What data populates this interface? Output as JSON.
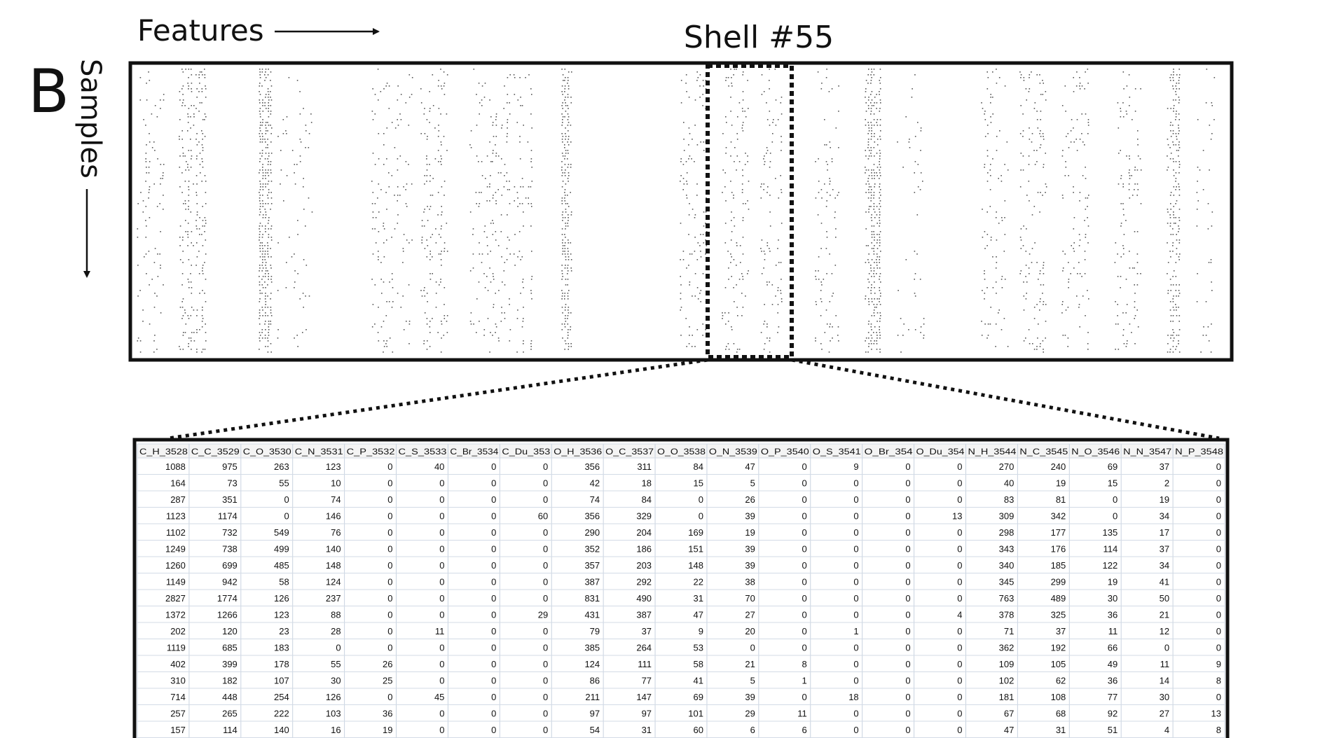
{
  "figure": {
    "panel_letter": "B",
    "features_label": "Features",
    "samples_label": "Samples",
    "shell_label": "Shell #55"
  },
  "table": {
    "headers": [
      "C_H_3528",
      "C_C_3529",
      "C_O_3530",
      "C_N_3531",
      "C_P_3532",
      "C_S_3533",
      "C_Br_3534",
      "C_Du_353",
      "O_H_3536",
      "O_C_3537",
      "O_O_3538",
      "O_N_3539",
      "O_P_3540",
      "O_S_3541",
      "O_Br_354",
      "O_Du_354",
      "N_H_3544",
      "N_C_3545",
      "N_O_3546",
      "N_N_3547",
      "N_P_3548"
    ],
    "rows": [
      [
        1088,
        975,
        263,
        123,
        0,
        40,
        0,
        0,
        356,
        311,
        84,
        47,
        0,
        9,
        0,
        0,
        270,
        240,
        69,
        37,
        0
      ],
      [
        164,
        73,
        55,
        10,
        0,
        0,
        0,
        0,
        42,
        18,
        15,
        5,
        0,
        0,
        0,
        0,
        40,
        19,
        15,
        2,
        0
      ],
      [
        287,
        351,
        0,
        74,
        0,
        0,
        0,
        0,
        74,
        84,
        0,
        26,
        0,
        0,
        0,
        0,
        83,
        81,
        0,
        19,
        0
      ],
      [
        1123,
        1174,
        0,
        146,
        0,
        0,
        0,
        60,
        356,
        329,
        0,
        39,
        0,
        0,
        0,
        13,
        309,
        342,
        0,
        34,
        0
      ],
      [
        1102,
        732,
        549,
        76,
        0,
        0,
        0,
        0,
        290,
        204,
        169,
        19,
        0,
        0,
        0,
        0,
        298,
        177,
        135,
        17,
        0
      ],
      [
        1249,
        738,
        499,
        140,
        0,
        0,
        0,
        0,
        352,
        186,
        151,
        39,
        0,
        0,
        0,
        0,
        343,
        176,
        114,
        37,
        0
      ],
      [
        1260,
        699,
        485,
        148,
        0,
        0,
        0,
        0,
        357,
        203,
        148,
        39,
        0,
        0,
        0,
        0,
        340,
        185,
        122,
        34,
        0
      ],
      [
        1149,
        942,
        58,
        124,
        0,
        0,
        0,
        0,
        387,
        292,
        22,
        38,
        0,
        0,
        0,
        0,
        345,
        299,
        19,
        41,
        0
      ],
      [
        2827,
        1774,
        126,
        237,
        0,
        0,
        0,
        0,
        831,
        490,
        31,
        70,
        0,
        0,
        0,
        0,
        763,
        489,
        30,
        50,
        0
      ],
      [
        1372,
        1266,
        123,
        88,
        0,
        0,
        0,
        29,
        431,
        387,
        47,
        27,
        0,
        0,
        0,
        4,
        378,
        325,
        36,
        21,
        0
      ],
      [
        202,
        120,
        23,
        28,
        0,
        11,
        0,
        0,
        79,
        37,
        9,
        20,
        0,
        1,
        0,
        0,
        71,
        37,
        11,
        12,
        0
      ],
      [
        1119,
        685,
        183,
        0,
        0,
        0,
        0,
        0,
        385,
        264,
        53,
        0,
        0,
        0,
        0,
        0,
        362,
        192,
        66,
        0,
        0
      ],
      [
        402,
        399,
        178,
        55,
        26,
        0,
        0,
        0,
        124,
        111,
        58,
        21,
        8,
        0,
        0,
        0,
        109,
        105,
        49,
        11,
        9
      ],
      [
        310,
        182,
        107,
        30,
        25,
        0,
        0,
        0,
        86,
        77,
        41,
        5,
        1,
        0,
        0,
        0,
        102,
        62,
        36,
        14,
        8
      ],
      [
        714,
        448,
        254,
        126,
        0,
        45,
        0,
        0,
        211,
        147,
        69,
        39,
        0,
        18,
        0,
        0,
        181,
        108,
        77,
        30,
        0
      ],
      [
        257,
        265,
        222,
        103,
        36,
        0,
        0,
        0,
        97,
        97,
        101,
        29,
        11,
        0,
        0,
        0,
        67,
        68,
        92,
        27,
        13
      ],
      [
        157,
        114,
        140,
        16,
        19,
        0,
        0,
        0,
        54,
        31,
        60,
        6,
        6,
        0,
        0,
        0,
        47,
        31,
        51,
        4,
        8
      ]
    ]
  }
}
